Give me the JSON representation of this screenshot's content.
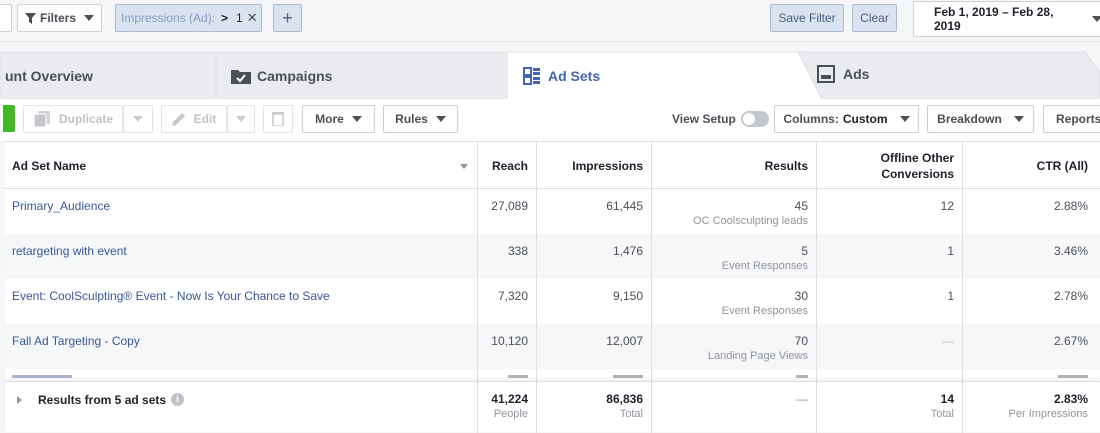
{
  "filters": {
    "filters_label": "Filters",
    "chip_field": "Impressions (Ad):",
    "chip_operator": ">",
    "chip_value": "1",
    "chip_remove": "✕",
    "add_label": "+",
    "save_filter": "Save Filter",
    "clear": "Clear",
    "date_range": "Feb 1, 2019 – Feb 28, 2019"
  },
  "tabs": [
    {
      "label": "unt Overview"
    },
    {
      "label": "Campaigns"
    },
    {
      "label": "Ad Sets"
    },
    {
      "label": "Ads"
    }
  ],
  "toolbar": {
    "duplicate": "Duplicate",
    "edit": "Edit",
    "more": "More",
    "rules": "Rules",
    "view_setup": "View Setup",
    "columns_prefix": "Columns:",
    "columns_value": "Custom",
    "breakdown": "Breakdown",
    "reports": "Reports"
  },
  "table": {
    "headers": {
      "name": "Ad Set Name",
      "reach": "Reach",
      "impressions": "Impressions",
      "results": "Results",
      "offline_line1": "Offline Other",
      "offline_line2": "Conversions",
      "ctr": "CTR (All)"
    },
    "rows": [
      {
        "name": "Primary_Audience",
        "reach": "27,089",
        "impressions": "61,445",
        "results": "45",
        "results_label": "OC Coolsculpting leads",
        "offline": "12",
        "ctr": "2.88%"
      },
      {
        "name": "retargeting with event",
        "reach": "338",
        "impressions": "1,476",
        "results": "5",
        "results_label": "Event Responses",
        "offline": "1",
        "ctr": "3.46%"
      },
      {
        "name": "Event: CoolSculpting® Event - Now Is Your Chance to Save",
        "reach": "7,320",
        "impressions": "9,150",
        "results": "30",
        "results_label": "Event Responses",
        "offline": "1",
        "ctr": "2.78%"
      },
      {
        "name": "Fall Ad Targeting - Copy",
        "reach": "10,120",
        "impressions": "12,007",
        "results": "70",
        "results_label": "Landing Page Views",
        "offline": "—",
        "ctr": "2.67%"
      }
    ],
    "footer": {
      "label": "Results from 5 ad sets",
      "reach": "41,224",
      "reach_label": "People",
      "impressions": "86,836",
      "impressions_label": "Total",
      "results": "—",
      "offline": "14",
      "offline_label": "Total",
      "ctr": "2.83%",
      "ctr_label": "Per Impressions"
    }
  },
  "colors": {
    "link": "#365899",
    "accent_green": "#42b72a",
    "active_tab": "#4267b2"
  }
}
